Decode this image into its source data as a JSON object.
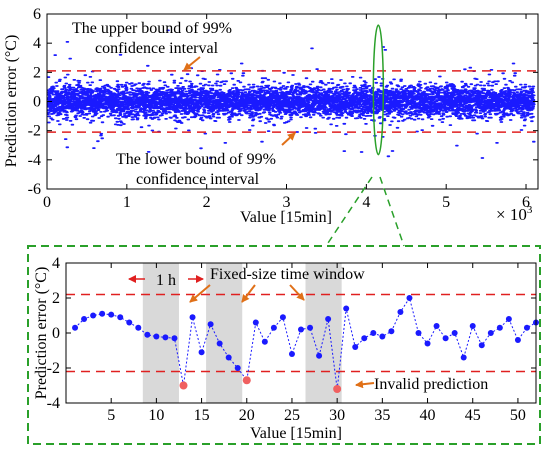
{
  "chart_data": [
    {
      "type": "scatter",
      "title": "",
      "xlabel": "Value [15min]",
      "ylabel": "Prediction error (°C)",
      "x_multiplier_label": "× 10",
      "x_multiplier_exp": "3",
      "xlim": [
        0,
        6.15
      ],
      "ylim": [
        -6,
        6
      ],
      "xticks": [
        "0",
        "1",
        "2",
        "3",
        "4",
        "5",
        "6"
      ],
      "yticks": [
        "6",
        "4",
        "2",
        "0",
        "-2",
        "-4",
        "-6"
      ],
      "xtick_values": [
        0,
        1,
        2,
        3,
        4,
        5,
        6
      ],
      "ytick_values": [
        6,
        4,
        2,
        0,
        -2,
        -4,
        -6
      ],
      "grid": false,
      "bounds": {
        "upper": 2.1,
        "lower": -2.1
      },
      "series": [
        {
          "type": "scatter",
          "color": "#1a1aff",
          "noise_sd": 0.55,
          "n_points": 6100
        }
      ],
      "annotations": {
        "upper_label_line1": "The upper bound of 99%",
        "upper_label_line2": "confidence interval",
        "lower_label_line1": "The lower bound of 99%",
        "lower_label_line2": "confidence interval"
      },
      "highlight_ellipse_x": 4.15
    },
    {
      "type": "line",
      "title": "",
      "xlabel": "Value [15min]",
      "ylabel": "Prediction error (°C)",
      "xlim": [
        0,
        52
      ],
      "ylim": [
        -4,
        4
      ],
      "xticks": [
        "5",
        "10",
        "15",
        "20",
        "25",
        "30",
        "35",
        "40",
        "45",
        "50"
      ],
      "yticks": [
        "4",
        "2",
        "0",
        "-2",
        "-4"
      ],
      "xtick_values": [
        5,
        10,
        15,
        20,
        25,
        30,
        35,
        40,
        45,
        50
      ],
      "ytick_values": [
        4,
        2,
        0,
        -2,
        -4
      ],
      "grid": false,
      "bounds": {
        "upper": 2.2,
        "lower": -2.2
      },
      "windows": [
        [
          8.5,
          12.5
        ],
        [
          15.5,
          19.5
        ],
        [
          26.5,
          30.5
        ]
      ],
      "series": [
        {
          "name": "",
          "color": "#1a1aff",
          "x": [
            1,
            2,
            3,
            4,
            5,
            6,
            7,
            8,
            9,
            10,
            11,
            12,
            13,
            14,
            15,
            16,
            17,
            18,
            19,
            20,
            21,
            22,
            23,
            24,
            25,
            26,
            27,
            28,
            29,
            30,
            31,
            32,
            33,
            34,
            35,
            36,
            37,
            38,
            39,
            40,
            41,
            42,
            43,
            44,
            45,
            46,
            47,
            48,
            49,
            50,
            51,
            52
          ],
          "y": [
            0.3,
            0.8,
            1.0,
            1.1,
            1.05,
            0.9,
            0.6,
            0.3,
            -0.1,
            -0.2,
            -0.25,
            -0.3,
            -3.0,
            0.9,
            -1.1,
            0.5,
            -0.6,
            -1.4,
            -2.0,
            -2.7,
            0.6,
            -0.5,
            0.3,
            0.9,
            -1.2,
            0.2,
            0.3,
            -1.3,
            0.8,
            -3.2,
            1.4,
            -0.8,
            -0.3,
            0.0,
            -0.2,
            0.1,
            1.2,
            2.0,
            0.0,
            -0.6,
            0.4,
            -0.3,
            0.0,
            -1.4,
            0.4,
            -0.7,
            0.0,
            0.3,
            0.8,
            -0.4,
            0.3,
            0.6
          ]
        }
      ],
      "invalid_points": [
        {
          "x": 13,
          "y": -3.0
        },
        {
          "x": 20,
          "y": -2.7
        },
        {
          "x": 30,
          "y": -3.2
        }
      ],
      "invalid_color": "#f06060",
      "window_color": "#d9d9d9",
      "annotations": {
        "one_hour": "1 h",
        "window_label": "Fixed-size time window",
        "invalid_label": "Invalid prediction"
      }
    }
  ],
  "colors": {
    "bound_line": "#e02020",
    "zoom_box": "#2aa02a",
    "arrow": "#e07018",
    "point": "#1a1aff"
  }
}
